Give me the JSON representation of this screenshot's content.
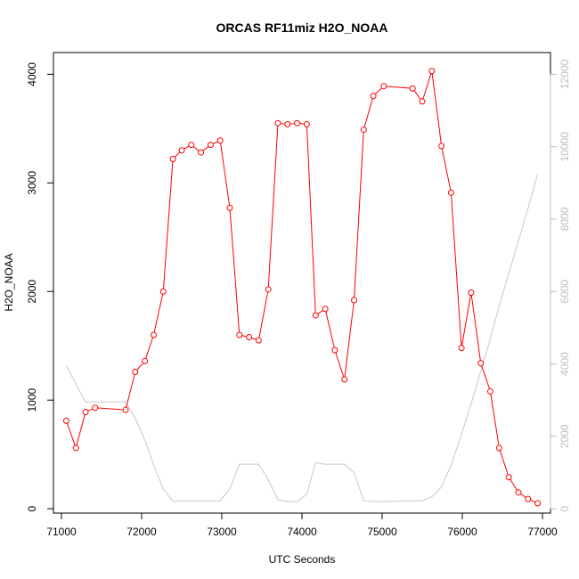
{
  "chart_data": {
    "type": "line",
    "title": "ORCAS RF11miz H2O_NOAA",
    "xlabel": "UTC Seconds",
    "ylabel": "H2O_NOAA",
    "xlim": [
      70900,
      77100
    ],
    "ylim": [
      -40,
      4200
    ],
    "y2lim": [
      -120,
      12600
    ],
    "x_ticks": [
      71000,
      72000,
      73000,
      74000,
      75000,
      76000,
      77000
    ],
    "y_ticks": [
      0,
      1000,
      2000,
      3000,
      4000
    ],
    "y2_ticks": [
      0,
      2000,
      4000,
      6000,
      8000,
      10000,
      12000
    ],
    "grid": false,
    "colors": {
      "primary": "#ff0000",
      "secondary": "#c8c8c8",
      "right_axis": "#bdbdbd"
    },
    "series": [
      {
        "axis": "left",
        "style": "line-with-circles",
        "x": [
          71060,
          71180,
          71300,
          71420,
          71800,
          71920,
          72040,
          72150,
          72270,
          72390,
          72500,
          72620,
          72740,
          72860,
          72980,
          73100,
          73220,
          73340,
          73460,
          73580,
          73700,
          73820,
          73940,
          74060,
          74170,
          74290,
          74410,
          74530,
          74650,
          74770,
          74890,
          75020,
          75380,
          75500,
          75620,
          75740,
          75860,
          75990,
          76110,
          76230,
          76350,
          76460,
          76580,
          76700,
          76820,
          76940
        ],
        "y": [
          810,
          560,
          890,
          930,
          910,
          1260,
          1360,
          1600,
          2000,
          3220,
          3300,
          3350,
          3280,
          3350,
          3390,
          2770,
          1600,
          1580,
          1550,
          2020,
          3550,
          3540,
          3550,
          3540,
          1780,
          1840,
          1460,
          1190,
          1920,
          3490,
          3800,
          3890,
          3870,
          3750,
          4030,
          3340,
          2910,
          1480,
          1990,
          1340,
          1080,
          560,
          290,
          150,
          90,
          50
        ]
      },
      {
        "axis": "right",
        "style": "line",
        "x": [
          71060,
          71180,
          71300,
          71420,
          71800,
          71920,
          72040,
          72150,
          72270,
          72390,
          72500,
          72620,
          72740,
          72860,
          72980,
          73100,
          73220,
          73340,
          73460,
          73580,
          73700,
          73820,
          73940,
          74060,
          74170,
          74290,
          74410,
          74530,
          74650,
          74770,
          74890,
          75020,
          75380,
          75500,
          75620,
          75740,
          75860,
          75990,
          76110,
          76230,
          76350,
          76460,
          76580,
          76700,
          76820,
          76940
        ],
        "y": [
          3950,
          3450,
          2950,
          2950,
          2950,
          2500,
          1900,
          1200,
          550,
          200,
          220,
          220,
          220,
          220,
          220,
          550,
          1230,
          1230,
          1230,
          800,
          250,
          200,
          200,
          400,
          1270,
          1230,
          1230,
          1230,
          1000,
          220,
          200,
          200,
          220,
          220,
          330,
          600,
          1200,
          2050,
          2900,
          3800,
          4700,
          5600,
          6500,
          7400,
          8300,
          9250
        ]
      }
    ]
  }
}
